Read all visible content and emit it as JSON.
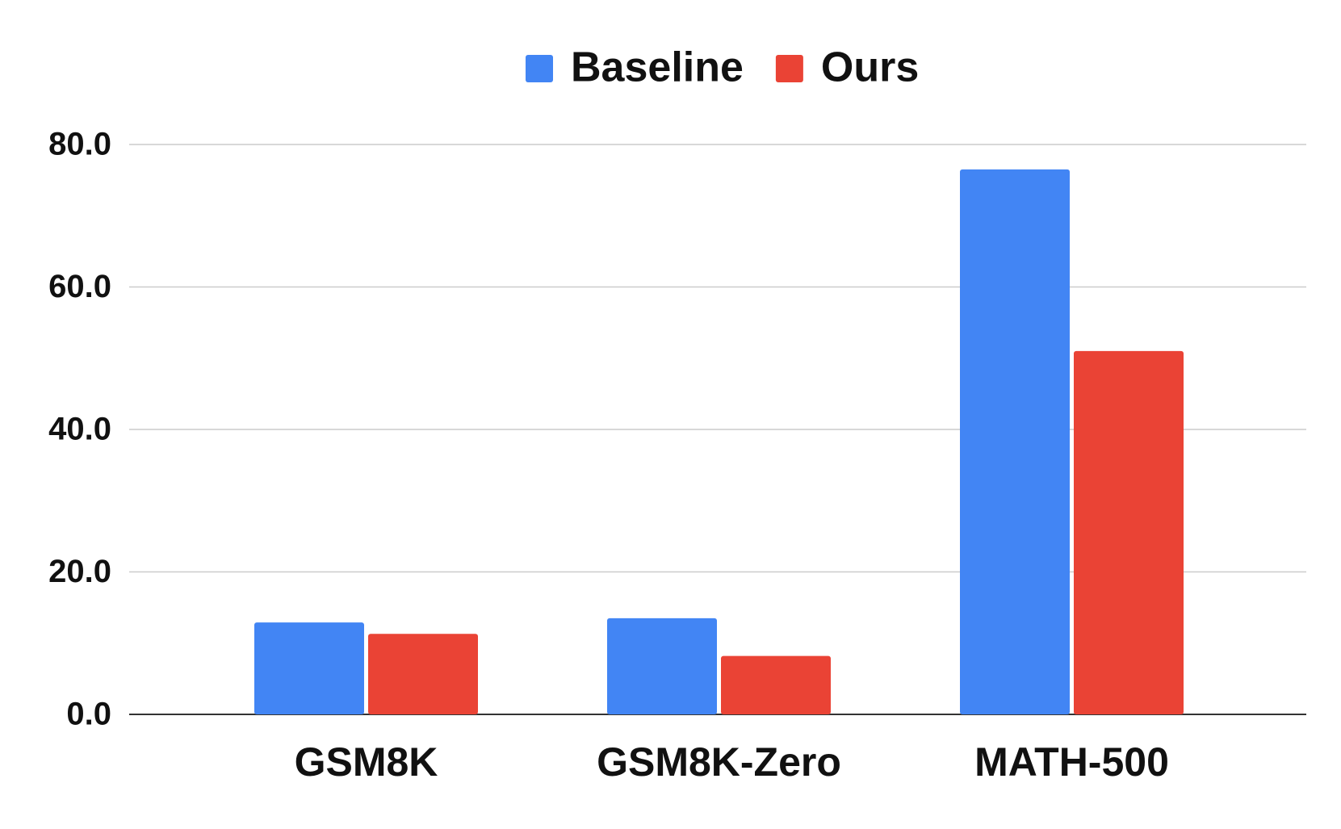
{
  "chart_data": {
    "type": "bar",
    "categories": [
      "GSM8K",
      "GSM8K-Zero",
      "MATH-500"
    ],
    "series": [
      {
        "name": "Baseline",
        "color": "#4285f4",
        "values": [
          12.9,
          13.5,
          76.5
        ]
      },
      {
        "name": "Ours",
        "color": "#ea4335",
        "values": [
          11.3,
          8.2,
          51.0
        ]
      }
    ],
    "ylim": [
      0,
      80
    ],
    "yticks": [
      {
        "value": 0,
        "label": "0.0"
      },
      {
        "value": 20,
        "label": "20.0"
      },
      {
        "value": 40,
        "label": "40.0"
      },
      {
        "value": 60,
        "label": "60.0"
      },
      {
        "value": 80,
        "label": "80.0"
      }
    ],
    "grid": true,
    "legend": "top"
  }
}
